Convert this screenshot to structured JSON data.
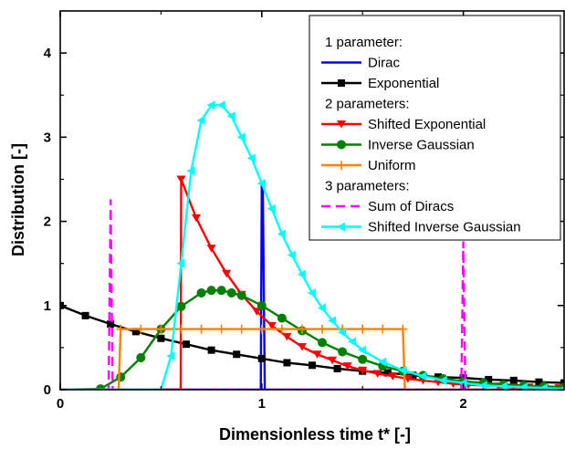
{
  "chart_data": {
    "type": "line",
    "xlabel": "Dimensionless time t* [-]",
    "ylabel": "Distribution [-]",
    "xlim": [
      0,
      2.5
    ],
    "ylim": [
      0,
      4.5
    ],
    "x_ticks": [
      "0",
      "1",
      "2"
    ],
    "y_ticks": [
      "0",
      "1",
      "2",
      "3",
      "4"
    ],
    "grid": false,
    "legend_position": "top-right",
    "legend_groups": [
      "1 parameter:",
      "2 parameters:",
      "3 parameters:"
    ],
    "series": [
      {
        "name": "Dirac",
        "group": 0,
        "color": "#0000ff",
        "marker": "none",
        "dash": "solid",
        "x": [
          0,
          0.995,
          1.0,
          1.005,
          1.015,
          2.5
        ],
        "y": [
          0,
          0,
          2.45,
          2.45,
          0,
          0
        ]
      },
      {
        "name": "Exponential",
        "group": 0,
        "color": "#000000",
        "marker": "square",
        "dash": "solid",
        "x": [
          0,
          0.125,
          0.25,
          0.375,
          0.5,
          0.625,
          0.75,
          0.875,
          1.0,
          1.125,
          1.25,
          1.375,
          1.5,
          1.625,
          1.75,
          1.875,
          2.0,
          2.125,
          2.25,
          2.375,
          2.5
        ],
        "y": [
          1.0,
          0.88,
          0.78,
          0.69,
          0.61,
          0.54,
          0.47,
          0.42,
          0.37,
          0.32,
          0.29,
          0.25,
          0.22,
          0.2,
          0.17,
          0.15,
          0.14,
          0.12,
          0.11,
          0.09,
          0.08
        ]
      },
      {
        "name": "Shifted Exponential",
        "group": 1,
        "color": "#ff0000",
        "marker": "triangle-down",
        "dash": "solid",
        "x": [
          0,
          0.598,
          0.6,
          0.675,
          0.75,
          0.825,
          0.9,
          0.975,
          1.05,
          1.125,
          1.2,
          1.275,
          1.35,
          1.425,
          1.5,
          1.575,
          1.65,
          1.725,
          1.8,
          1.875,
          1.95,
          2.025,
          2.1,
          2.175,
          2.25,
          2.325,
          2.4,
          2.475
        ],
        "y": [
          0,
          0,
          2.5,
          2.04,
          1.68,
          1.38,
          1.13,
          0.93,
          0.76,
          0.63,
          0.51,
          0.42,
          0.35,
          0.28,
          0.23,
          0.19,
          0.16,
          0.13,
          0.11,
          0.09,
          0.07,
          0.06,
          0.05,
          0.04,
          0.03,
          0.03,
          0.02,
          0.02
        ]
      },
      {
        "name": "Inverse Gaussian",
        "group": 1,
        "color": "#008000",
        "marker": "circle",
        "dash": "solid",
        "x": [
          0,
          0.2,
          0.3,
          0.4,
          0.5,
          0.6,
          0.7,
          0.75,
          0.8,
          0.85,
          0.9,
          1.0,
          1.1,
          1.2,
          1.3,
          1.4,
          1.5,
          1.6,
          1.7,
          1.8,
          1.9,
          2.0,
          2.1,
          2.2,
          2.3,
          2.4,
          2.5
        ],
        "y": [
          0,
          0.01,
          0.15,
          0.38,
          0.72,
          0.99,
          1.15,
          1.18,
          1.18,
          1.15,
          1.12,
          1.0,
          0.85,
          0.7,
          0.56,
          0.45,
          0.36,
          0.28,
          0.22,
          0.17,
          0.13,
          0.1,
          0.08,
          0.06,
          0.05,
          0.04,
          0.03
        ]
      },
      {
        "name": "Uniform",
        "group": 1,
        "color": "#ff8000",
        "marker": "plus",
        "dash": "solid",
        "x": [
          0,
          0.29,
          0.3,
          0.4,
          0.5,
          0.6,
          0.7,
          0.8,
          0.9,
          1.0,
          1.1,
          1.2,
          1.3,
          1.4,
          1.5,
          1.6,
          1.7,
          1.71,
          2.5
        ],
        "y": [
          0,
          0,
          0.72,
          0.72,
          0.72,
          0.72,
          0.72,
          0.72,
          0.72,
          0.72,
          0.72,
          0.72,
          0.72,
          0.72,
          0.72,
          0.72,
          0.72,
          0,
          0
        ]
      },
      {
        "name": "Sum of Diracs",
        "group": 2,
        "color": "#ff00ff",
        "marker": "none",
        "dash": "dashed",
        "x": [
          0,
          0.24,
          0.25,
          0.26,
          1.99,
          2.0,
          2.01,
          2.5
        ],
        "y": [
          0,
          0,
          2.25,
          0,
          0,
          1.75,
          0,
          0
        ]
      },
      {
        "name": "Shifted Inverse Gaussian",
        "group": 2,
        "color": "#00ffff",
        "marker": "triangle-left",
        "dash": "solid",
        "x": [
          0,
          0.5,
          0.55,
          0.6,
          0.65,
          0.7,
          0.75,
          0.8,
          0.85,
          0.9,
          0.95,
          1.0,
          1.05,
          1.1,
          1.15,
          1.2,
          1.25,
          1.3,
          1.35,
          1.4,
          1.45,
          1.5,
          1.6,
          1.7,
          1.8,
          1.9,
          2.0,
          2.1,
          2.2,
          2.3,
          2.4,
          2.5
        ],
        "y": [
          0,
          0.0,
          0.4,
          1.5,
          2.6,
          3.2,
          3.38,
          3.38,
          3.25,
          3.0,
          2.75,
          2.45,
          2.15,
          1.85,
          1.6,
          1.37,
          1.15,
          0.97,
          0.82,
          0.68,
          0.57,
          0.47,
          0.33,
          0.23,
          0.16,
          0.11,
          0.08,
          0.05,
          0.04,
          0.03,
          0.02,
          0.01
        ]
      }
    ]
  }
}
